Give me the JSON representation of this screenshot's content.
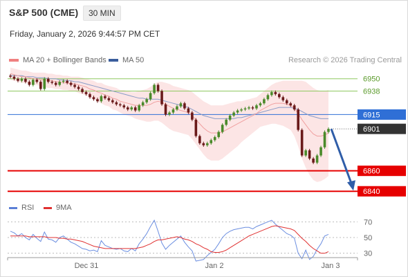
{
  "header": {
    "symbol": "S&P 500 (CME)",
    "timeframe": "30 MIN",
    "datetime": "Friday, January 2, 2026 9:44:57 PM CET"
  },
  "legend_top": [
    {
      "label": "MA 20 + Bollinger Bands",
      "color": "#f08080"
    },
    {
      "label": "MA 50",
      "color": "#3a5d9c"
    }
  ],
  "credit": "Research © 2026 Trading Central",
  "legend_bottom": [
    {
      "label": "RSI",
      "color": "#5b7fd6"
    },
    {
      "label": "9MA",
      "color": "#e03030"
    }
  ],
  "chart_data": [
    {
      "type": "candlestick",
      "x_ticks": [
        "Dec 31",
        "Jan 2",
        "Jan 3"
      ],
      "ylim": [
        6830,
        6962
      ],
      "levels": [
        {
          "value": 6950,
          "label": "6950",
          "color": "#8fc860",
          "style": "resistance"
        },
        {
          "value": 6938,
          "label": "6938",
          "color": "#8fc860",
          "style": "resistance"
        },
        {
          "value": 6915,
          "label": "6915",
          "color": "#2f6fd6",
          "style": "pivot"
        },
        {
          "value": 6901,
          "label": "6901",
          "color": "#333333",
          "style": "last"
        },
        {
          "value": 6860,
          "label": "6860",
          "color": "#e60000",
          "style": "support"
        },
        {
          "value": 6840,
          "label": "6840",
          "color": "#e60000",
          "style": "support"
        }
      ],
      "close": [
        6952,
        6950,
        6948,
        6950,
        6947,
        6944,
        6949,
        6947,
        6940,
        6950,
        6947,
        6946,
        6944,
        6947,
        6948,
        6946,
        6944,
        6942,
        6940,
        6937,
        6935,
        6932,
        6930,
        6928,
        6933,
        6931,
        6929,
        6927,
        6925,
        6924,
        6922,
        6920,
        6922,
        6919,
        6924,
        6927,
        6930,
        6936,
        6944,
        6938,
        6925,
        6915,
        6917,
        6920,
        6923,
        6926,
        6921,
        6917,
        6910,
        6894,
        6887,
        6885,
        6887,
        6890,
        6893,
        6898,
        6905,
        6910,
        6914,
        6917,
        6919,
        6920,
        6921,
        6922,
        6921,
        6924,
        6926,
        6930,
        6934,
        6937,
        6935,
        6932,
        6929,
        6926,
        6924,
        6920,
        6900,
        6875,
        6880,
        6872,
        6868,
        6875,
        6883,
        6898,
        6901
      ],
      "ma20": [
        6955,
        6954,
        6953,
        6952,
        6952,
        6951,
        6950,
        6950,
        6949,
        6949,
        6948,
        6948,
        6947,
        6947,
        6946,
        6946,
        6945,
        6945,
        6944,
        6943,
        6942,
        6940,
        6939,
        6937,
        6936,
        6934,
        6933,
        6931,
        6930,
        6928,
        6927,
        6926,
        6925,
        6924,
        6924,
        6924,
        6924,
        6925,
        6927,
        6928,
        6927,
        6925,
        6923,
        6921,
        6920,
        6919,
        6918,
        6917,
        6914,
        6910,
        6906,
        6902,
        6899,
        6897,
        6897,
        6897,
        6898,
        6900,
        6902,
        6904,
        6906,
        6908,
        6910,
        6912,
        6914,
        6916,
        6919,
        6921,
        6923,
        6925,
        6926,
        6926,
        6926,
        6925,
        6924,
        6921,
        6916,
        6910,
        6905,
        6900,
        6896,
        6894,
        6894,
        6895,
        6897
      ],
      "ma50": [
        6953,
        6953,
        6953,
        6953,
        6952,
        6952,
        6952,
        6951,
        6951,
        6951,
        6950,
        6950,
        6950,
        6949,
        6949,
        6948,
        6948,
        6947,
        6947,
        6946,
        6945,
        6944,
        6943,
        6942,
        6941,
        6940,
        6939,
        6938,
        6937,
        6936,
        6935,
        6934,
        6933,
        6932,
        6931,
        6931,
        6930,
        6930,
        6930,
        6930,
        6929,
        6928,
        6927,
        6926,
        6925,
        6924,
        6923,
        6922,
        6920,
        6918,
        6916,
        6914,
        6913,
        6912,
        6911,
        6911,
        6911,
        6911,
        6911,
        6911,
        6912,
        6912,
        6913,
        6914,
        6915,
        6916,
        6917,
        6918,
        6919,
        6920,
        6921,
        6922,
        6922,
        6922,
        6922,
        6921,
        6920,
        6918,
        6916,
        6914,
        6913,
        6912,
        6911,
        6911,
        6911
      ],
      "bb_width": [
        6,
        6,
        6,
        6,
        6,
        6,
        6,
        6,
        7,
        7,
        7,
        7,
        7,
        7,
        7,
        7,
        7,
        7,
        8,
        8,
        8,
        9,
        9,
        9,
        10,
        10,
        10,
        11,
        11,
        11,
        12,
        12,
        12,
        13,
        14,
        15,
        16,
        17,
        18,
        19,
        20,
        21,
        22,
        22,
        22,
        22,
        22,
        22,
        23,
        24,
        25,
        26,
        27,
        27,
        27,
        27,
        26,
        25,
        24,
        23,
        22,
        20,
        19,
        18,
        17,
        16,
        16,
        17,
        18,
        19,
        20,
        21,
        22,
        23,
        24,
        27,
        32,
        38,
        42,
        44,
        45,
        45,
        44,
        43,
        42
      ],
      "forecast": {
        "from": 6901,
        "to": 6842
      }
    },
    {
      "type": "line",
      "title": "RSI",
      "ylim": [
        20,
        80
      ],
      "y_ticks": [
        70,
        50,
        30
      ],
      "series": [
        {
          "name": "RSI",
          "values": [
            58,
            56,
            52,
            55,
            50,
            47,
            54,
            49,
            45,
            57,
            48,
            47,
            44,
            50,
            52,
            48,
            44,
            42,
            39,
            36,
            35,
            33,
            34,
            32,
            46,
            40,
            38,
            36,
            35,
            36,
            33,
            32,
            36,
            33,
            42,
            48,
            55,
            64,
            72,
            58,
            43,
            35,
            40,
            44,
            48,
            52,
            44,
            38,
            33,
            20,
            21,
            22,
            27,
            31,
            35,
            42,
            50,
            55,
            58,
            60,
            61,
            62,
            63,
            63,
            61,
            64,
            66,
            68,
            70,
            72,
            67,
            63,
            59,
            55,
            53,
            49,
            30,
            23,
            34,
            22,
            26,
            35,
            42,
            52,
            54
          ]
        },
        {
          "name": "9MA",
          "values": [
            52,
            52,
            52,
            52,
            52,
            51,
            51,
            51,
            51,
            51,
            50,
            50,
            50,
            49,
            49,
            48,
            48,
            47,
            46,
            45,
            43,
            41,
            39,
            38,
            37,
            36,
            36,
            36,
            36,
            36,
            36,
            36,
            36,
            36,
            37,
            38,
            40,
            42,
            45,
            47,
            47,
            48,
            49,
            50,
            51,
            50,
            48,
            47,
            45,
            42,
            40,
            37,
            35,
            32,
            31,
            31,
            32,
            34,
            37,
            40,
            43,
            46,
            49,
            52,
            54,
            56,
            58,
            60,
            62,
            64,
            65,
            64,
            63,
            62,
            61,
            59,
            54,
            49,
            45,
            40,
            36,
            33,
            30,
            30,
            32
          ]
        }
      ]
    }
  ]
}
